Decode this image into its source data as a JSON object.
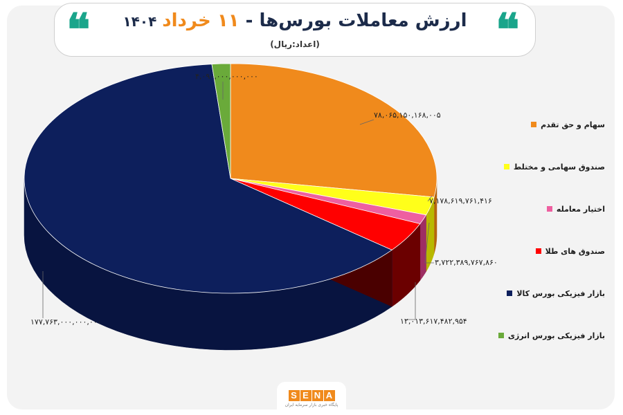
{
  "header": {
    "title_main": "ارزش معاملات بورس‌ها -",
    "title_day": "۱۱ خرداد",
    "title_year": "۱۴۰۴",
    "subtitle": "(اعداد:ریال)",
    "quote_glyph": "❝"
  },
  "logo": {
    "letters": [
      "S",
      "E",
      "N",
      "A"
    ],
    "tagline": "پایگاه خبری بازار سرمایه ایران"
  },
  "chart_data": {
    "type": "pie",
    "title": "ارزش معاملات بورس‌ها - ۱۱ خرداد ۱۴۰۴",
    "unit": "(اعداد:ریال)",
    "three_d": true,
    "legend_position": "right",
    "series": [
      {
        "name": "سهام و حق تقدم",
        "value": 78065150168005,
        "label": "۷۸,۰۶۵,۱۵۰,۱۶۸,۰۰۵",
        "color": "#f08a1c",
        "side_color": "#b5650f"
      },
      {
        "name": "صندوق سهامی و مختلط",
        "value": 7178619761416,
        "label": "۷,۱۷۸,۶۱۹,۷۶۱,۴۱۶",
        "color": "#ffff1a",
        "side_color": "#b8b800"
      },
      {
        "name": "اختیار معامله",
        "value": 3722389767860,
        "label": "۳,۷۲۲,۳۸۹,۷۶۷,۸۶۰",
        "color": "#ee5fa0",
        "side_color": "#9e2e63"
      },
      {
        "name": "صندوق های طلا",
        "value": 12013617482954,
        "label": "۱۲,۰۱۳,۶۱۷,۴۸۲,۹۵۴",
        "color": "#ff0000",
        "side_color": "#6b0000"
      },
      {
        "name": "بازار فیزیکی بورس کالا",
        "value": 177763000000000,
        "label": "۱۷۷,۷۶۳,۰۰۰,۰۰۰,۰۰۰",
        "color": "#0d1f5c",
        "side_color": "#081440"
      },
      {
        "name": "بازار فیزیکی بورس انرژی",
        "value": 4090000000000,
        "label": "۴,۰۹۰,۰۰۰,۰۰۰,۰۰۰",
        "color": "#6aaa3a",
        "side_color": "#3f6e1d"
      }
    ]
  }
}
